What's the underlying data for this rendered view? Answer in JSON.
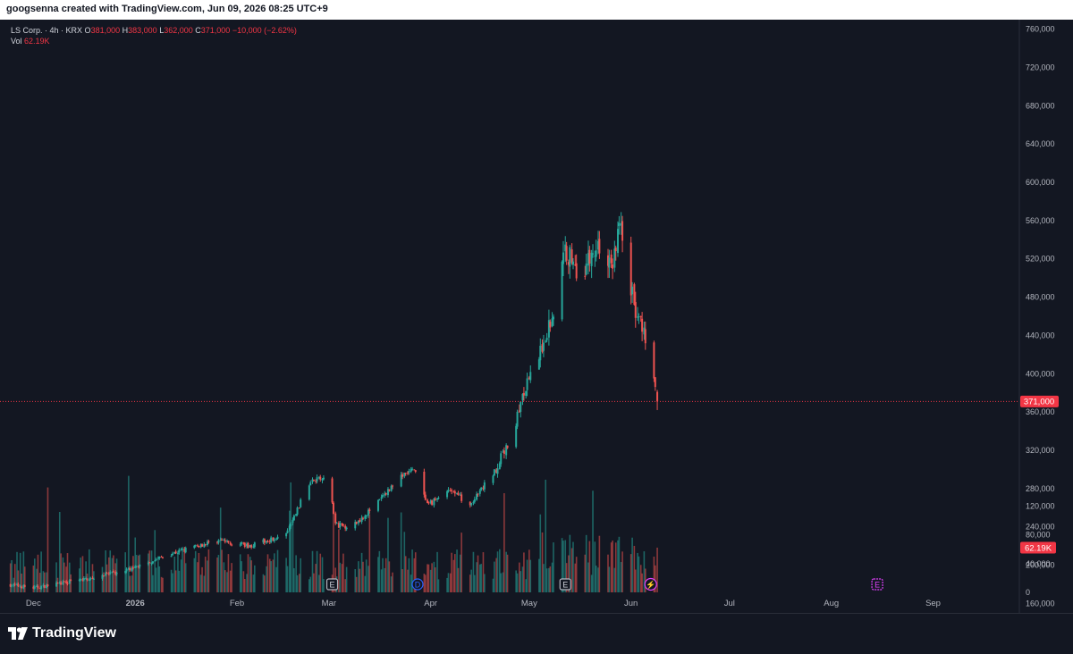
{
  "header": {
    "text": "googsenna created with TradingView.com, Jun 09, 2026 08:25 UTC+9"
  },
  "legend": {
    "symbol": "LS Corp. · 4h · KRX",
    "o_label": "O",
    "o_value": "381,000",
    "h_label": "H",
    "h_value": "383,000",
    "l_label": "L",
    "l_value": "362,000",
    "c_label": "C",
    "c_value": "371,000",
    "change": "−10,000 (−2.62%)",
    "vol_label": "Vol",
    "vol_value": "62.19K"
  },
  "footer": {
    "logo_text": "TradingView"
  },
  "colors": {
    "up": "#26a69a",
    "down": "#ef5350",
    "background": "#131722",
    "price_line": "#f23645",
    "event_earnings": "#b2b5be",
    "event_dividend": "#2962ff",
    "event_split": "#e040fb"
  },
  "chart_data": {
    "type": "candlestick",
    "title": "LS Corp. · 4h · KRX",
    "interval": "4h",
    "y_axis": {
      "ticks": [
        "760,000",
        "720,000",
        "680,000",
        "640,000",
        "600,000",
        "560,000",
        "520,000",
        "480,000",
        "440,000",
        "400,000",
        "360,000",
        "320,000",
        "280,000",
        "240,000",
        "200,000",
        "160,000"
      ],
      "tick_values": [
        760000,
        720000,
        680000,
        640000,
        600000,
        560000,
        520000,
        480000,
        440000,
        400000,
        360000,
        320000,
        280000,
        240000,
        200000,
        160000
      ],
      "range": [
        150000,
        770000
      ]
    },
    "volume_axis": {
      "ticks": [
        "120,000",
        "80,000",
        "40,000",
        "0"
      ],
      "tick_values": [
        120000,
        80000,
        40000,
        0
      ],
      "range": [
        0,
        175000
      ]
    },
    "x_axis": {
      "labels": [
        {
          "text": "Dec",
          "date": "2025-12-01"
        },
        {
          "text": "2026",
          "date": "2026-01-01"
        },
        {
          "text": "Feb",
          "date": "2026-02-01"
        },
        {
          "text": "Mar",
          "date": "2026-03-01"
        },
        {
          "text": "Apr",
          "date": "2026-04-01"
        },
        {
          "text": "May",
          "date": "2026-05-01"
        },
        {
          "text": "Jun",
          "date": "2026-06-01"
        },
        {
          "text": "Jul",
          "date": "2026-07-01"
        },
        {
          "text": "Aug",
          "date": "2026-08-01"
        },
        {
          "text": "Sep",
          "date": "2026-09-01"
        }
      ],
      "range": [
        "2025-11-23",
        "2026-09-27"
      ]
    },
    "current_price": {
      "value": 371000,
      "label": "371,000"
    },
    "current_volume": {
      "value": 62190,
      "label": "62.19K"
    },
    "anchors": [
      {
        "date": "2025-11-23",
        "close": 180000
      },
      {
        "date": "2025-12-01",
        "close": 176000
      },
      {
        "date": "2025-12-15",
        "close": 184000
      },
      {
        "date": "2025-12-29",
        "close": 194000
      },
      {
        "date": "2026-01-12",
        "close": 212000
      },
      {
        "date": "2026-01-26",
        "close": 226000
      },
      {
        "date": "2026-02-05",
        "close": 220000
      },
      {
        "date": "2026-02-16",
        "close": 232000
      },
      {
        "date": "2026-02-24",
        "close": 292000
      },
      {
        "date": "2026-03-01",
        "close": 288000
      },
      {
        "date": "2026-03-03",
        "close": 242000
      },
      {
        "date": "2026-03-08",
        "close": 240000
      },
      {
        "date": "2026-03-15",
        "close": 262000
      },
      {
        "date": "2026-03-22",
        "close": 290000
      },
      {
        "date": "2026-03-27",
        "close": 300000
      },
      {
        "date": "2026-03-31",
        "close": 262000
      },
      {
        "date": "2026-04-07",
        "close": 280000
      },
      {
        "date": "2026-04-13",
        "close": 262000
      },
      {
        "date": "2026-04-21",
        "close": 300000
      },
      {
        "date": "2026-04-26",
        "close": 338000
      },
      {
        "date": "2026-04-29",
        "close": 375000
      },
      {
        "date": "2026-05-04",
        "close": 420000
      },
      {
        "date": "2026-05-09",
        "close": 470000
      },
      {
        "date": "2026-05-12",
        "close": 530000
      },
      {
        "date": "2026-05-17",
        "close": 505000
      },
      {
        "date": "2026-05-22",
        "close": 535000
      },
      {
        "date": "2026-05-26",
        "close": 510000
      },
      {
        "date": "2026-05-29",
        "close": 560000
      },
      {
        "date": "2026-06-02",
        "close": 470000
      },
      {
        "date": "2026-06-05",
        "close": 440000
      },
      {
        "date": "2026-06-09",
        "close": 371000
      }
    ],
    "events": [
      {
        "type": "earnings",
        "label": "E",
        "date": "2026-03-02"
      },
      {
        "type": "dividend",
        "label": "D",
        "date": "2026-03-28"
      },
      {
        "type": "earnings",
        "label": "E",
        "date": "2026-05-12"
      },
      {
        "type": "split",
        "label": "⚡",
        "date": "2026-06-07"
      },
      {
        "type": "earnings-upcoming",
        "label": "E",
        "date": "2026-08-15"
      }
    ]
  }
}
